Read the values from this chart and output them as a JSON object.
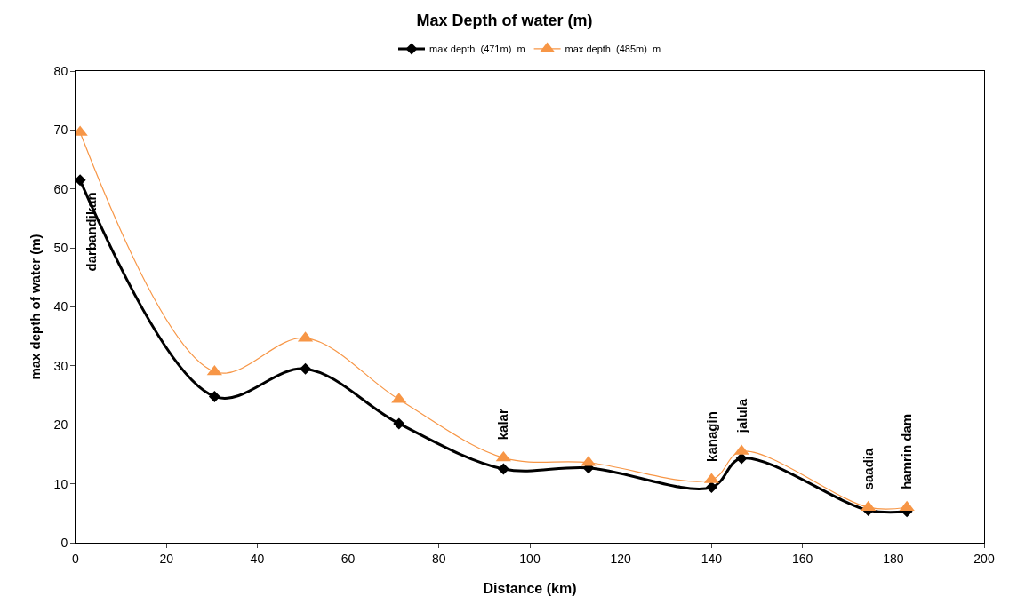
{
  "chart_data": {
    "type": "line",
    "title": "Max Depth of water (m)",
    "xlabel": "Distance (km)",
    "ylabel": "max depth of water (m)",
    "x": [
      1,
      30.6,
      50.6,
      71.2,
      94.2,
      112.9,
      140,
      146.6,
      174.5,
      183
    ],
    "series": [
      {
        "name": "max depth  (471m)  m",
        "color": "#000000",
        "marker": "diamond",
        "values": [
          61.5,
          24.8,
          29.5,
          20.2,
          12.5,
          12.7,
          9.4,
          14.3,
          5.5,
          5.3
        ]
      },
      {
        "name": "max depth  (485m)  m",
        "color": "#f79646",
        "marker": "triangle",
        "values": [
          69.6,
          29,
          34.7,
          24.3,
          14.4,
          13.6,
          10.7,
          15.5,
          6,
          6
        ]
      }
    ],
    "xlim": [
      0,
      200
    ],
    "xticks": [
      0,
      20,
      40,
      60,
      80,
      100,
      120,
      140,
      160,
      180,
      200
    ],
    "ylim": [
      0,
      80
    ],
    "yticks": [
      0,
      10,
      20,
      30,
      40,
      50,
      60,
      70,
      80
    ],
    "grid": false,
    "legend": "top",
    "line_style": "solid",
    "annotations": [
      {
        "text": "darbandikan",
        "x": 1,
        "y": 61.5
      },
      {
        "text": "kalar",
        "x": 94.2,
        "y": 14.4
      },
      {
        "text": "kanagin",
        "x": 140,
        "y": 10.7
      },
      {
        "text": "jalula",
        "x": 146.6,
        "y": 15.5
      },
      {
        "text": "saadia",
        "x": 174.5,
        "y": 6
      },
      {
        "text": "hamrin dam",
        "x": 183,
        "y": 6
      }
    ]
  }
}
